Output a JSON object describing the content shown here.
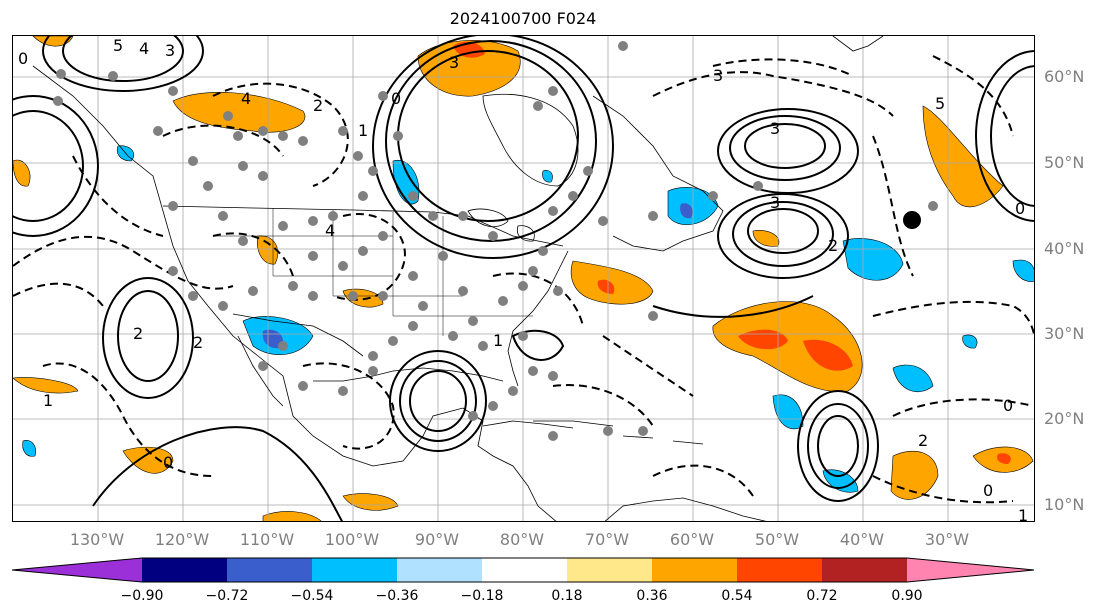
{
  "title": "2024100700 F024",
  "lat_labels": [
    "60°N",
    "50°N",
    "40°N",
    "30°N",
    "20°N",
    "10°N"
  ],
  "lon_labels": [
    "130°W",
    "120°W",
    "110°W",
    "100°W",
    "90°W",
    "80°W",
    "70°W",
    "60°W",
    "50°W",
    "40°W",
    "30°W"
  ],
  "colorbar": {
    "ticks": [
      "−0.90",
      "−0.72",
      "−0.54",
      "−0.36",
      "−0.18",
      "0.18",
      "0.36",
      "0.54",
      "0.72",
      "0.90"
    ],
    "colors": [
      "#9b30d9",
      "#000080",
      "#3a5fcd",
      "#00bfff",
      "#b0e2ff",
      "#ffffff",
      "#ffe88a",
      "#ffa500",
      "#ff4500",
      "#b22222",
      "#ff85b0"
    ]
  },
  "contour_labels": [
    {
      "text": "5"
    },
    {
      "text": "4"
    },
    {
      "text": "3"
    },
    {
      "text": "0"
    },
    {
      "text": "4"
    },
    {
      "text": "3"
    },
    {
      "text": "0"
    },
    {
      "text": "2"
    },
    {
      "text": "1"
    },
    {
      "text": "3"
    },
    {
      "text": "3"
    },
    {
      "text": "0"
    },
    {
      "text": "5"
    },
    {
      "text": "3"
    },
    {
      "text": "2"
    },
    {
      "text": "2"
    },
    {
      "text": "1"
    },
    {
      "text": "0"
    },
    {
      "text": "2"
    },
    {
      "text": "4"
    },
    {
      "text": "1"
    },
    {
      "text": "2"
    },
    {
      "text": "0"
    },
    {
      "text": "0"
    },
    {
      "text": "1"
    }
  ]
}
